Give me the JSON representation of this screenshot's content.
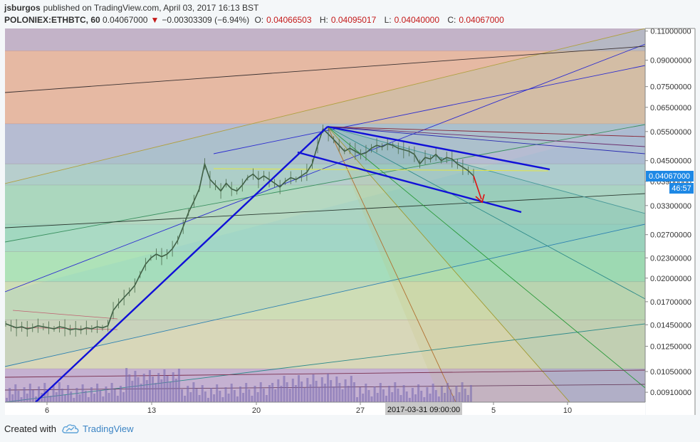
{
  "header": {
    "publisher": "jsburgos",
    "published_text": "published on TradingView.com, April 03, 2017 16:13 BST",
    "symbol": "POLONIEX:ETHBTC, 60",
    "last": "0.04067000",
    "change": "−0.00303309 (−6.94%)",
    "o_label": "O:",
    "o_value": "0.04066503",
    "h_label": "H:",
    "h_value": "0.04095017",
    "l_label": "L:",
    "l_value": "0.04040000",
    "c_label": "C:",
    "c_value": "0.04067000"
  },
  "price_tag": {
    "value": "0.04067000",
    "countdown": "46:57"
  },
  "crosshair_label": "2017-03-31 09:00:00",
  "footer": {
    "created_with": "Created with",
    "brand": "TradingView"
  },
  "colors": {
    "price_tag": "#1e88e5",
    "trend_blue": "#1010d8",
    "arrow_red": "#e01010",
    "candles": "#4a6a4a"
  },
  "chart_data": {
    "type": "line",
    "title": "",
    "xlabel": "",
    "ylabel": "",
    "scale": "log",
    "ylim": [
      0.0085,
      0.112
    ],
    "y_ticks": [
      "0.11000000",
      "0.09000000",
      "0.07500000",
      "0.06500000",
      "0.05500000",
      "0.04500000",
      "0.03900000",
      "0.03300000",
      "0.02700000",
      "0.02300000",
      "0.02000000",
      "0.01700000",
      "0.01450000",
      "0.01250000",
      "0.01050000",
      "0.00910000"
    ],
    "x_ticks": [
      "6",
      "13",
      "20",
      "27",
      "5",
      "10"
    ],
    "grid": false,
    "series": [
      {
        "values": [
          0.0146,
          0.0144,
          0.0142,
          0.0143,
          0.0141,
          0.0142,
          0.0144,
          0.0143,
          0.0142,
          0.0141,
          0.0143,
          0.0142,
          0.014,
          0.0141,
          0.014,
          0.0142,
          0.0141,
          0.0143,
          0.0142,
          0.0144,
          0.016,
          0.0168,
          0.0175,
          0.0182,
          0.019,
          0.0205,
          0.022,
          0.023,
          0.0236,
          0.0232,
          0.0236,
          0.0245,
          0.026,
          0.0285,
          0.0315,
          0.034,
          0.037,
          0.044,
          0.0395,
          0.038,
          0.0365,
          0.0385,
          0.037,
          0.0365,
          0.038,
          0.04,
          0.041,
          0.0395,
          0.0405,
          0.0395,
          0.0385,
          0.0375,
          0.039,
          0.04,
          0.0395,
          0.0405,
          0.0415,
          0.044,
          0.05,
          0.056,
          0.054,
          0.052,
          0.05,
          0.048,
          0.049,
          0.048,
          0.047,
          0.0475,
          0.049,
          0.05,
          0.0495,
          0.0505,
          0.05,
          0.049,
          0.0485,
          0.048,
          0.047,
          0.044,
          0.046,
          0.0455,
          0.047,
          0.045,
          0.046,
          0.0455,
          0.044,
          0.043,
          0.042,
          0.0405
        ]
      }
    ]
  }
}
